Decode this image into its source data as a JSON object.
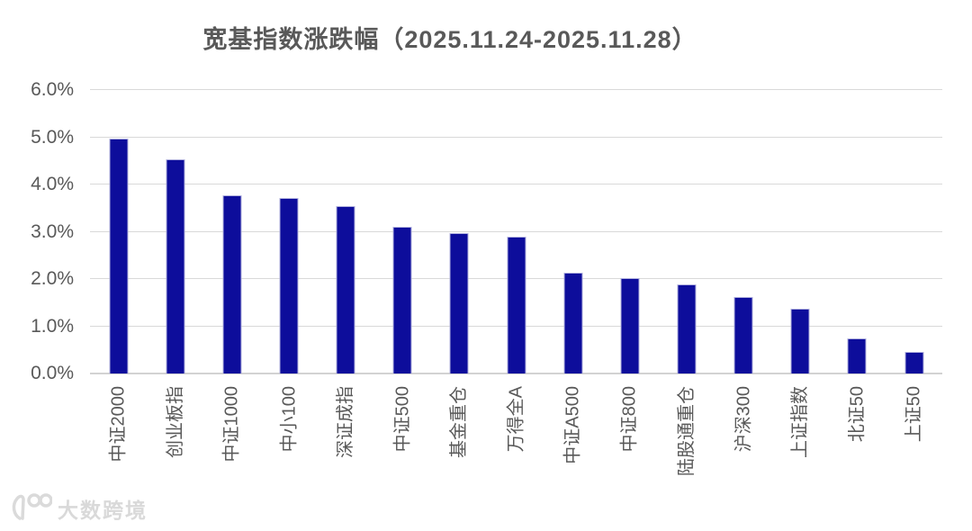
{
  "page": {
    "background": "#ffffff"
  },
  "chart_data": {
    "type": "bar",
    "title": "宽基指数涨跌幅（2025.11.24-2025.11.28）",
    "categories": [
      "中证2000",
      "创业板指",
      "中证1000",
      "中小100",
      "深证成指",
      "中证500",
      "基金重仓",
      "万得全A",
      "中证A500",
      "中证800",
      "陆股通重仓",
      "沪深300",
      "上证指数",
      "北证50",
      "上证50"
    ],
    "values": [
      4.97,
      4.53,
      3.77,
      3.72,
      3.55,
      3.11,
      2.97,
      2.89,
      2.14,
      2.02,
      1.89,
      1.61,
      1.37,
      0.75,
      0.46
    ],
    "value_unit": "%",
    "ylim": [
      0,
      6
    ],
    "ytick_labels": [
      "0.0%",
      "1.0%",
      "2.0%",
      "3.0%",
      "4.0%",
      "5.0%",
      "6.0%"
    ],
    "grid": true,
    "legend": null,
    "xlabel": "",
    "ylabel": "",
    "bar_color": "#0d0d9b",
    "bar_border_color": "#b0b0de",
    "grid_color": "#d9d9d9",
    "axis_text_color": "#595959",
    "title_color": "#595959"
  },
  "watermark": {
    "logo_text": "100",
    "label": "大数跨境",
    "color": "#d9d9d9"
  }
}
